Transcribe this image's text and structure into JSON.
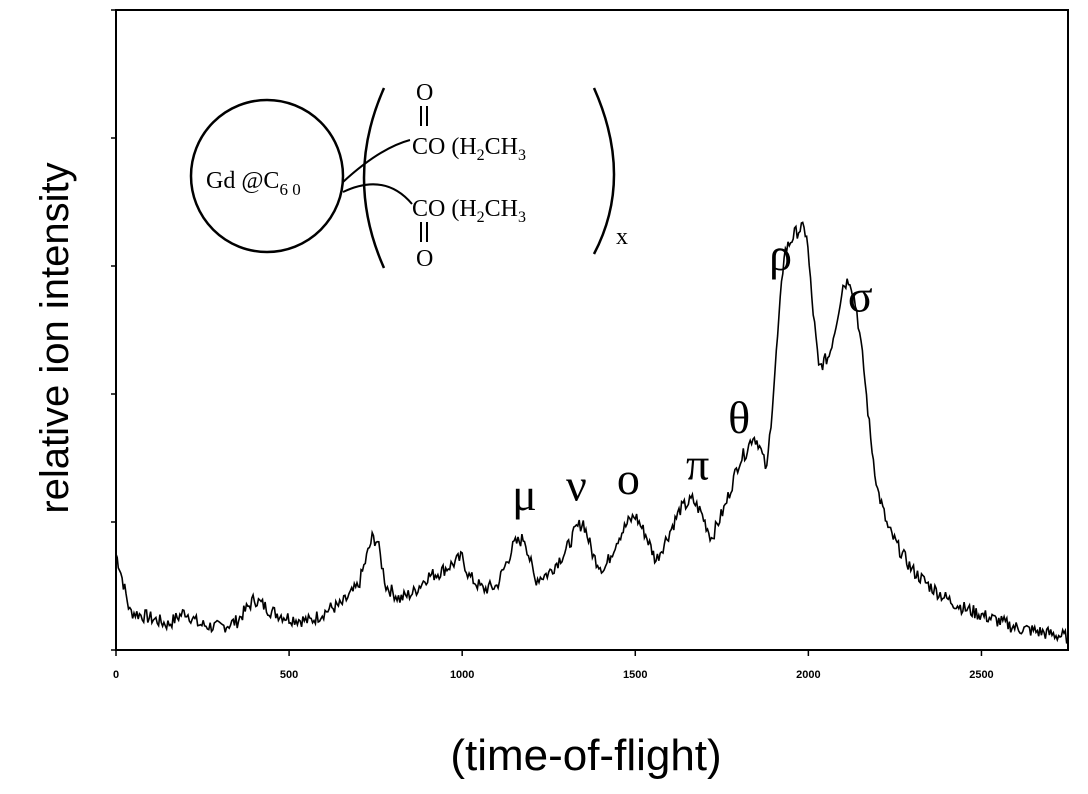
{
  "chart_data": {
    "type": "line",
    "xlabel": "(time-of-flight)",
    "ylabel": "relative ion intensity",
    "xlim": [
      0,
      2750
    ],
    "ylim": [
      0,
      1
    ],
    "x_ticks": [
      0,
      500,
      1000,
      1500,
      2000,
      2500
    ],
    "x_tick_labels": [
      "0",
      "500",
      "1000",
      "1500",
      "2000",
      "2500"
    ],
    "y_tick_count": 5,
    "y_tick_labels_shown": false,
    "grid": false,
    "legend": "none",
    "line_color": "#000000",
    "series": [
      {
        "x": [
          0,
          10,
          40,
          100,
          150,
          200,
          240,
          300,
          350,
          400,
          450,
          500,
          560,
          620,
          650,
          700,
          740,
          755,
          780,
          820,
          860,
          900,
          930,
          960,
          1000,
          1020,
          1060,
          1100,
          1150,
          1180,
          1210,
          1250,
          1300,
          1330,
          1350,
          1380,
          1410,
          1450,
          1480,
          1500,
          1530,
          1560,
          1600,
          1630,
          1665,
          1690,
          1720,
          1760,
          1800,
          1820,
          1840,
          1855,
          1880,
          1900,
          1930,
          1960,
          1980,
          1995,
          2010,
          2030,
          2060,
          2080,
          2100,
          2120,
          2140,
          2160,
          2180,
          2200,
          2230,
          2260,
          2300,
          2350,
          2400,
          2450,
          2500,
          2550,
          2600,
          2650,
          2700,
          2750
        ],
        "values": [
          0.15,
          0.13,
          0.06,
          0.05,
          0.04,
          0.06,
          0.04,
          0.035,
          0.045,
          0.08,
          0.06,
          0.05,
          0.045,
          0.065,
          0.07,
          0.1,
          0.175,
          0.17,
          0.1,
          0.08,
          0.09,
          0.115,
          0.12,
          0.13,
          0.145,
          0.115,
          0.095,
          0.1,
          0.165,
          0.175,
          0.11,
          0.12,
          0.155,
          0.19,
          0.2,
          0.145,
          0.125,
          0.175,
          0.2,
          0.21,
          0.18,
          0.14,
          0.185,
          0.22,
          0.235,
          0.215,
          0.175,
          0.225,
          0.295,
          0.31,
          0.335,
          0.325,
          0.28,
          0.41,
          0.62,
          0.65,
          0.66,
          0.65,
          0.55,
          0.44,
          0.46,
          0.51,
          0.57,
          0.58,
          0.53,
          0.44,
          0.33,
          0.25,
          0.19,
          0.16,
          0.125,
          0.1,
          0.08,
          0.065,
          0.055,
          0.045,
          0.035,
          0.03,
          0.025,
          0.02
        ]
      }
    ],
    "peak_labels": [
      {
        "label": "μ",
        "x": 1180
      },
      {
        "label": "ν",
        "x": 1330
      },
      {
        "label": "o",
        "x": 1480
      },
      {
        "label": "π",
        "x": 1680
      },
      {
        "label": "θ",
        "x": 1800
      },
      {
        "label": "ρ",
        "x": 1920
      },
      {
        "label": "σ",
        "x": 2150
      }
    ]
  },
  "inset": {
    "compound": "Gd @C",
    "subscript": "6 0",
    "carbonyl_o": "O",
    "group_top": "CO (H",
    "group_top_sub": "2",
    "group_top_tail": "CH",
    "group_top_tail_sub": "3",
    "group_bottom": "CO (H",
    "group_bottom_sub": "2",
    "group_bottom_tail": "CH",
    "group_bottom_tail_sub": "3",
    "multiplier": "x"
  }
}
